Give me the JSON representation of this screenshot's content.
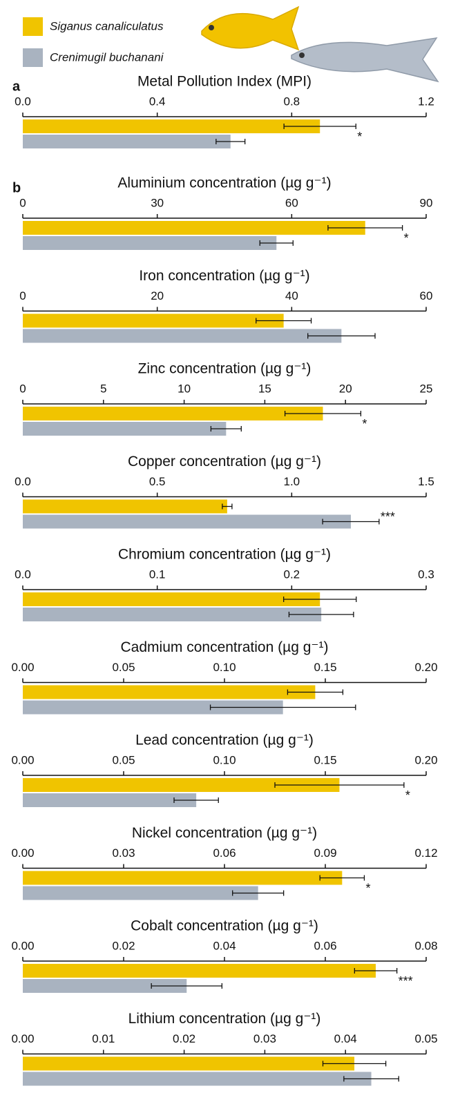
{
  "legend": {
    "series": [
      {
        "name": "Siganus canaliculatus",
        "color": "#f0c400"
      },
      {
        "name": "Crenimugil buchanani",
        "color": "#a9b3c0"
      }
    ]
  },
  "chart_data": [
    {
      "type": "bar",
      "panel_label": "a",
      "title": "Metal Pollution Index (MPI)",
      "values": [
        0.884,
        0.618
      ],
      "errors": [
        0.107,
        0.043
      ],
      "annotation": "*",
      "xlim": [
        0,
        1.2
      ],
      "xticks": [
        {
          "value": 0,
          "label": "0.0"
        },
        0.4,
        0.8,
        1.2
      ]
    },
    {
      "type": "bar",
      "panel_label": "b",
      "title": "Aluminium concentration (µg g⁻¹)",
      "values": [
        76.4,
        56.6
      ],
      "errors": [
        8.3,
        3.7
      ],
      "annotation": "*",
      "xlim": [
        0,
        90
      ],
      "xticks": [
        0,
        30,
        60,
        90
      ]
    },
    {
      "type": "bar",
      "title": "Iron concentration (µg g⁻¹)",
      "values": [
        38.8,
        47.4
      ],
      "errors": [
        4.1,
        5.0
      ],
      "xlim": [
        0,
        60
      ],
      "xticks": [
        0,
        20,
        40,
        60
      ]
    },
    {
      "type": "bar",
      "title": "Zinc concentration (µg g⁻¹)",
      "values": [
        18.6,
        12.6
      ],
      "errors": [
        2.35,
        0.94
      ],
      "annotation": "*",
      "xlim": [
        0,
        25
      ],
      "xticks": [
        0,
        5,
        10,
        15,
        20,
        25
      ]
    },
    {
      "type": "bar",
      "title": "Copper concentration (µg g⁻¹)",
      "values": [
        0.76,
        1.22
      ],
      "errors": [
        0.018,
        0.105
      ],
      "annotation": "***",
      "xlim": [
        0,
        1.5
      ],
      "xticks": [
        {
          "value": 0,
          "label": "0.0"
        },
        0.5,
        {
          "value": 1,
          "label": "1.0"
        },
        1.5
      ]
    },
    {
      "type": "bar",
      "title": "Chromium concentration (µg g⁻¹)",
      "values": [
        0.221,
        0.222
      ],
      "errors": [
        0.027,
        0.024
      ],
      "xlim": [
        0,
        0.3
      ],
      "xticks": [
        {
          "value": 0,
          "label": "0.0"
        },
        0.1,
        0.2,
        0.3
      ]
    },
    {
      "type": "bar",
      "title": "Cadmium concentration (µg g⁻¹)",
      "values": [
        0.145,
        0.129
      ],
      "errors": [
        0.0137,
        0.036
      ],
      "xlim": [
        0,
        0.2
      ],
      "xticks": [
        {
          "value": 0,
          "label": "0.00"
        },
        0.05,
        {
          "value": 0.1,
          "label": "0.10"
        },
        0.15,
        {
          "value": 0.2,
          "label": "0.20"
        }
      ]
    },
    {
      "type": "bar",
      "title": "Lead concentration (µg g⁻¹)",
      "values": [
        0.157,
        0.086
      ],
      "errors": [
        0.032,
        0.011
      ],
      "annotation": "*",
      "xlim": [
        0,
        0.2
      ],
      "xticks": [
        {
          "value": 0,
          "label": "0.00"
        },
        0.05,
        {
          "value": 0.1,
          "label": "0.10"
        },
        0.15,
        {
          "value": 0.2,
          "label": "0.20"
        }
      ]
    },
    {
      "type": "bar",
      "title": "Nickel concentration (µg g⁻¹)",
      "values": [
        0.095,
        0.07
      ],
      "errors": [
        0.0066,
        0.0076
      ],
      "annotation": "*",
      "xlim": [
        0,
        0.12
      ],
      "xticks": [
        {
          "value": 0,
          "label": "0.00"
        },
        0.03,
        0.06,
        0.09,
        0.12
      ]
    },
    {
      "type": "bar",
      "title": "Cobalt concentration (µg g⁻¹)",
      "values": [
        0.07,
        0.0325
      ],
      "errors": [
        0.0042,
        0.007
      ],
      "annotation": "***",
      "xlim": [
        0,
        0.08
      ],
      "xticks": [
        {
          "value": 0,
          "label": "0.00"
        },
        0.02,
        0.04,
        0.06,
        0.08
      ]
    },
    {
      "type": "bar",
      "title": "Lithium concentration (µg g⁻¹)",
      "values": [
        0.0411,
        0.0432
      ],
      "errors": [
        0.0039,
        0.0034
      ],
      "xlim": [
        0,
        0.05
      ],
      "xticks": [
        {
          "value": 0,
          "label": "0.00"
        },
        0.01,
        0.02,
        0.03,
        0.04,
        0.05
      ]
    }
  ]
}
